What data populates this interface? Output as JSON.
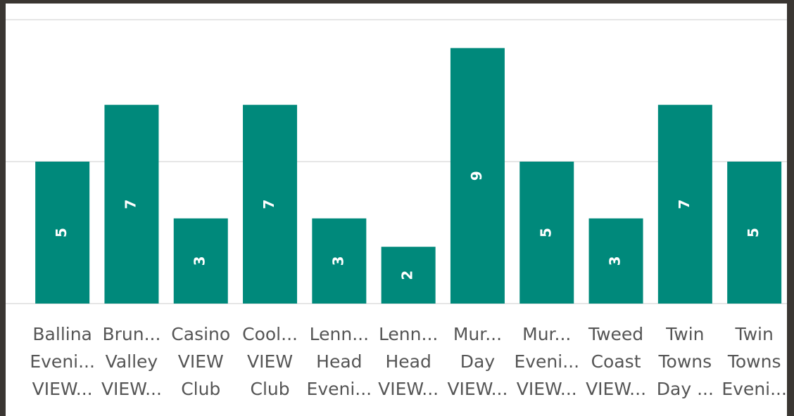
{
  "chart_data": {
    "type": "bar",
    "categories": [
      [
        "Ballina",
        "Eveni...",
        "VIEW..."
      ],
      [
        "Brun...",
        "Valley",
        "VIEW..."
      ],
      [
        "Casino",
        "VIEW",
        "Club"
      ],
      [
        "Cool...",
        "VIEW",
        "Club"
      ],
      [
        "Lenn...",
        "Head",
        "Eveni..."
      ],
      [
        "Lenn...",
        "Head",
        "VIEW..."
      ],
      [
        "Mur...",
        "Day",
        "VIEW..."
      ],
      [
        "Mur...",
        "Eveni...",
        "VIEW..."
      ],
      [
        "Tweed",
        "Coast",
        "VIEW..."
      ],
      [
        "Twin",
        "Towns",
        "Day ..."
      ],
      [
        "Twin",
        "Towns",
        "Eveni..."
      ]
    ],
    "values": [
      5,
      7,
      3,
      7,
      3,
      2,
      9,
      5,
      3,
      7,
      5
    ],
    "color": "#00897b",
    "ylim": [
      0,
      10
    ],
    "yticks": [
      0,
      5,
      10
    ],
    "grid": true
  }
}
